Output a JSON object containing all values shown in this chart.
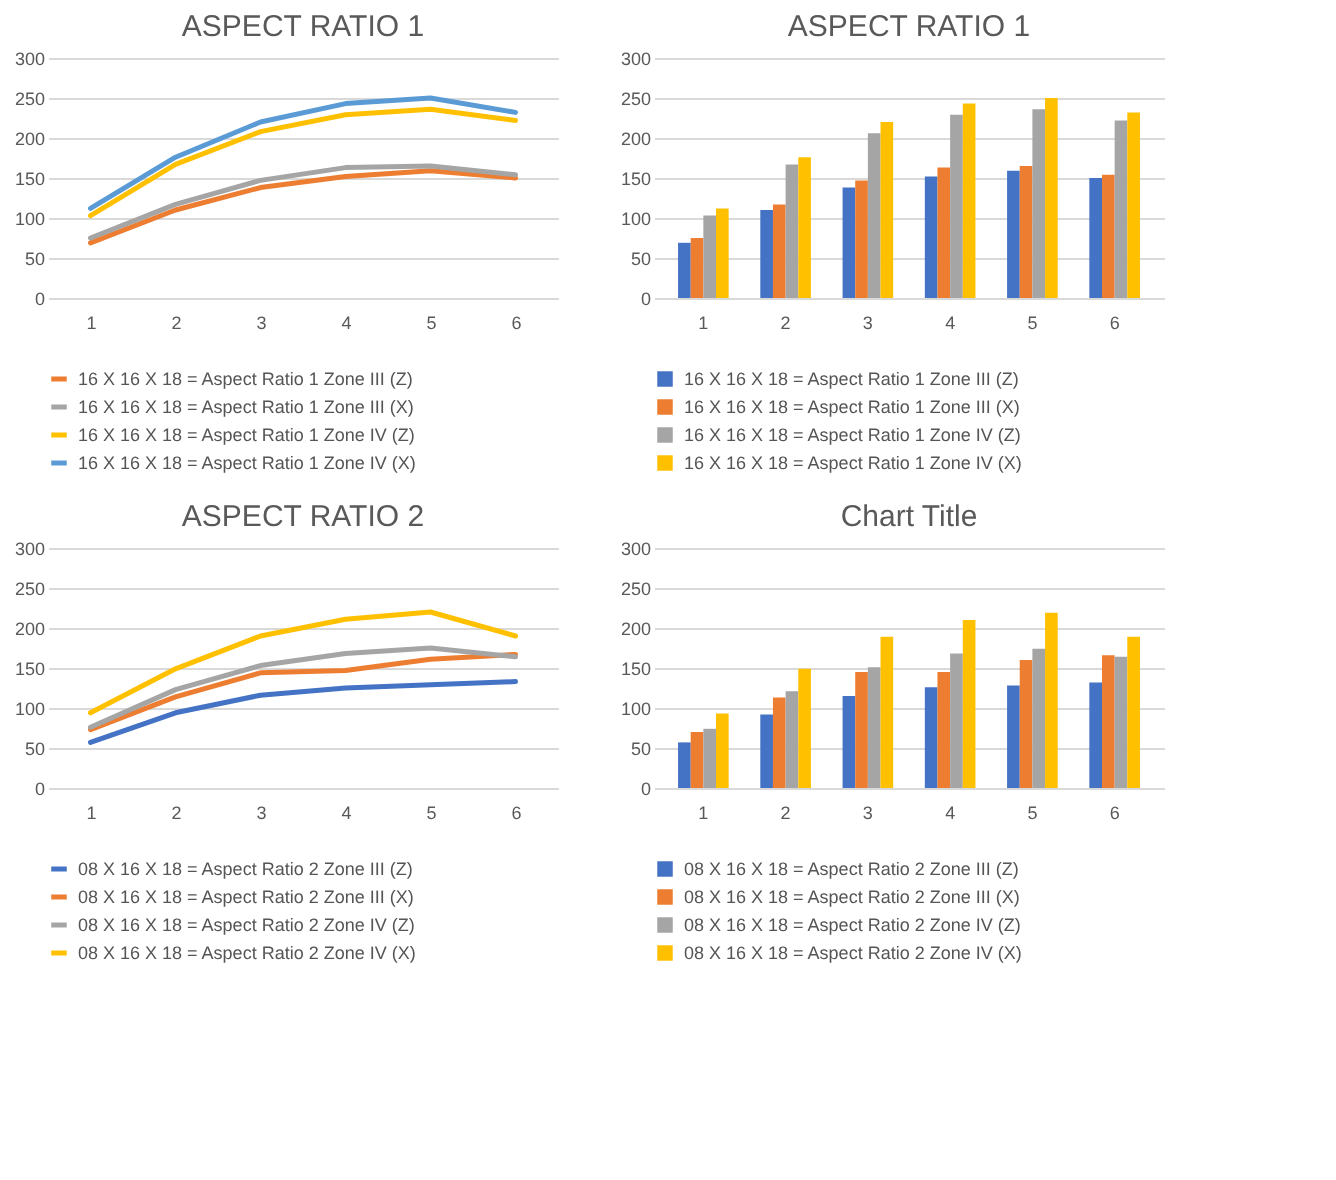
{
  "chart_data": [
    {
      "type": "line",
      "title": "ASPECT RATIO 1",
      "categories": [
        "1",
        "2",
        "3",
        "4",
        "5",
        "6"
      ],
      "ylim": [
        0,
        300
      ],
      "yticks": [
        0,
        50,
        100,
        150,
        200,
        250,
        300
      ],
      "grid": "y",
      "legend": "bottom",
      "series": [
        {
          "name": "16 X 16 X 18  = Aspect Ratio 1 Zone III (Z)",
          "color": "#ed7d31",
          "values": [
            69,
            110,
            138,
            152,
            159,
            150
          ]
        },
        {
          "name": "16 X 16 X 18  = Aspect Ratio 1 Zone III (X)",
          "color": "#a5a5a5",
          "values": [
            75,
            117,
            147,
            163,
            165,
            154
          ]
        },
        {
          "name": "16 X 16 X 18  = Aspect Ratio 1 Zone IV (Z)",
          "color": "#ffc000",
          "values": [
            103,
            167,
            208,
            229,
            236,
            222
          ]
        },
        {
          "name": "16 X 16 X 18  = Aspect Ratio 1 Zone IV (X)",
          "color": "#5b9bd5",
          "values": [
            112,
            176,
            220,
            243,
            250,
            232
          ]
        }
      ]
    },
    {
      "type": "bar",
      "title": "ASPECT RATIO 1",
      "categories": [
        "1",
        "2",
        "3",
        "4",
        "5",
        "6"
      ],
      "ylim": [
        0,
        300
      ],
      "yticks": [
        0,
        50,
        100,
        150,
        200,
        250,
        300
      ],
      "grid": "y",
      "legend": "bottom",
      "series": [
        {
          "name": "16 X 16 X 18  = Aspect Ratio 1 Zone III (Z)",
          "color": "#4472c4",
          "values": [
            69,
            110,
            138,
            152,
            159,
            150
          ]
        },
        {
          "name": "16 X 16 X 18  = Aspect Ratio 1 Zone III (X)",
          "color": "#ed7d31",
          "values": [
            75,
            117,
            147,
            163,
            165,
            154
          ]
        },
        {
          "name": "16 X 16 X 18  = Aspect Ratio 1 Zone IV (Z)",
          "color": "#a5a5a5",
          "values": [
            103,
            167,
            206,
            229,
            236,
            222
          ]
        },
        {
          "name": "16 X 16 X 18  = Aspect Ratio 1 Zone IV (X)",
          "color": "#ffc000",
          "values": [
            112,
            176,
            220,
            243,
            250,
            232
          ]
        }
      ]
    },
    {
      "type": "line",
      "title": "ASPECT RATIO 2",
      "categories": [
        "1",
        "2",
        "3",
        "4",
        "5",
        "6"
      ],
      "ylim": [
        0,
        300
      ],
      "yticks": [
        0,
        50,
        100,
        150,
        200,
        250,
        300
      ],
      "grid": "y",
      "legend": "bottom",
      "series": [
        {
          "name": "08 X 16 X 18 = Aspect Ratio 2 Zone III (Z)",
          "color": "#4472c4",
          "values": [
            57,
            94,
            116,
            125,
            129,
            133
          ]
        },
        {
          "name": "08 X 16 X 18 = Aspect Ratio 2 Zone III (X)",
          "color": "#ed7d31",
          "values": [
            73,
            114,
            144,
            147,
            161,
            167
          ]
        },
        {
          "name": "08 X 16 X 18 = Aspect Ratio 2 Zone IV (Z)",
          "color": "#a5a5a5",
          "values": [
            76,
            123,
            153,
            168,
            175,
            164
          ]
        },
        {
          "name": "08 X 16 X 18 = Aspect Ratio 2 Zone IV (X)",
          "color": "#ffc000",
          "values": [
            94,
            149,
            190,
            211,
            220,
            190
          ]
        }
      ]
    },
    {
      "type": "bar",
      "title": "Chart Title",
      "categories": [
        "1",
        "2",
        "3",
        "4",
        "5",
        "6"
      ],
      "ylim": [
        0,
        300
      ],
      "yticks": [
        0,
        50,
        100,
        150,
        200,
        250,
        300
      ],
      "grid": "y",
      "legend": "bottom",
      "series": [
        {
          "name": "08 X 16 X 18 = Aspect Ratio 2 Zone III (Z)",
          "color": "#4472c4",
          "values": [
            57,
            92,
            115,
            126,
            128,
            132
          ]
        },
        {
          "name": "08 X 16 X 18 = Aspect Ratio 2 Zone III (X)",
          "color": "#ed7d31",
          "values": [
            70,
            113,
            145,
            145,
            160,
            166
          ]
        },
        {
          "name": "08 X 16 X 18 = Aspect Ratio 2 Zone IV (Z)",
          "color": "#a5a5a5",
          "values": [
            74,
            121,
            151,
            168,
            174,
            164
          ]
        },
        {
          "name": "08 X 16 X 18 = Aspect Ratio 2 Zone IV (X)",
          "color": "#ffc000",
          "values": [
            93,
            149,
            189,
            210,
            219,
            189
          ]
        }
      ]
    }
  ]
}
